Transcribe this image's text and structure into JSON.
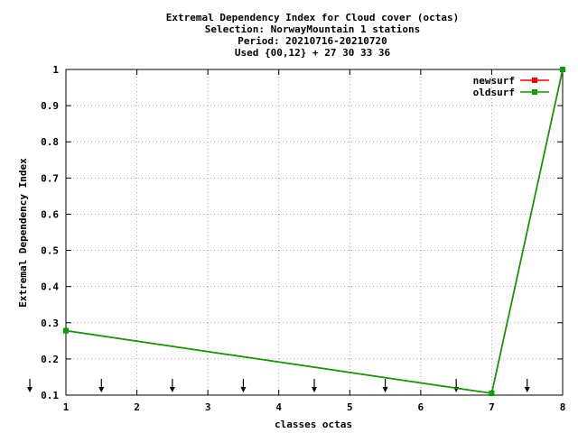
{
  "chart_data": {
    "type": "line",
    "title_lines": [
      "Extremal Dependency Index  for Cloud cover (octas)",
      "Selection: NorwayMountain      1 stations",
      "Period: 20210716-20210720",
      "Used {00,12} + 27 30 33 36"
    ],
    "xlabel": "classes octas",
    "ylabel": "Extremal Dependency Index",
    "xlim": [
      1,
      8
    ],
    "ylim": [
      0.1,
      1
    ],
    "x_ticks": [
      "1",
      "2",
      "3",
      "4",
      "5",
      "6",
      "7",
      "8"
    ],
    "y_ticks": [
      "0.1",
      "0.2",
      "0.3",
      "0.4",
      "0.5",
      "0.6",
      "0.7",
      "0.8",
      "0.9",
      "1"
    ],
    "grid": true,
    "legend_position": "top-right",
    "series": [
      {
        "name": "newsurf",
        "color": "#ff0000",
        "x": [
          1,
          7,
          8
        ],
        "y": [
          0.278,
          0.105,
          1.0
        ]
      },
      {
        "name": "oldsurf",
        "color": "#00a000",
        "x": [
          1,
          7,
          8
        ],
        "y": [
          0.278,
          0.105,
          1.0
        ]
      }
    ],
    "arrow_markers_x": [
      1.5,
      2.5,
      3.5,
      4.5,
      5.5,
      6.5,
      7.5
    ]
  }
}
